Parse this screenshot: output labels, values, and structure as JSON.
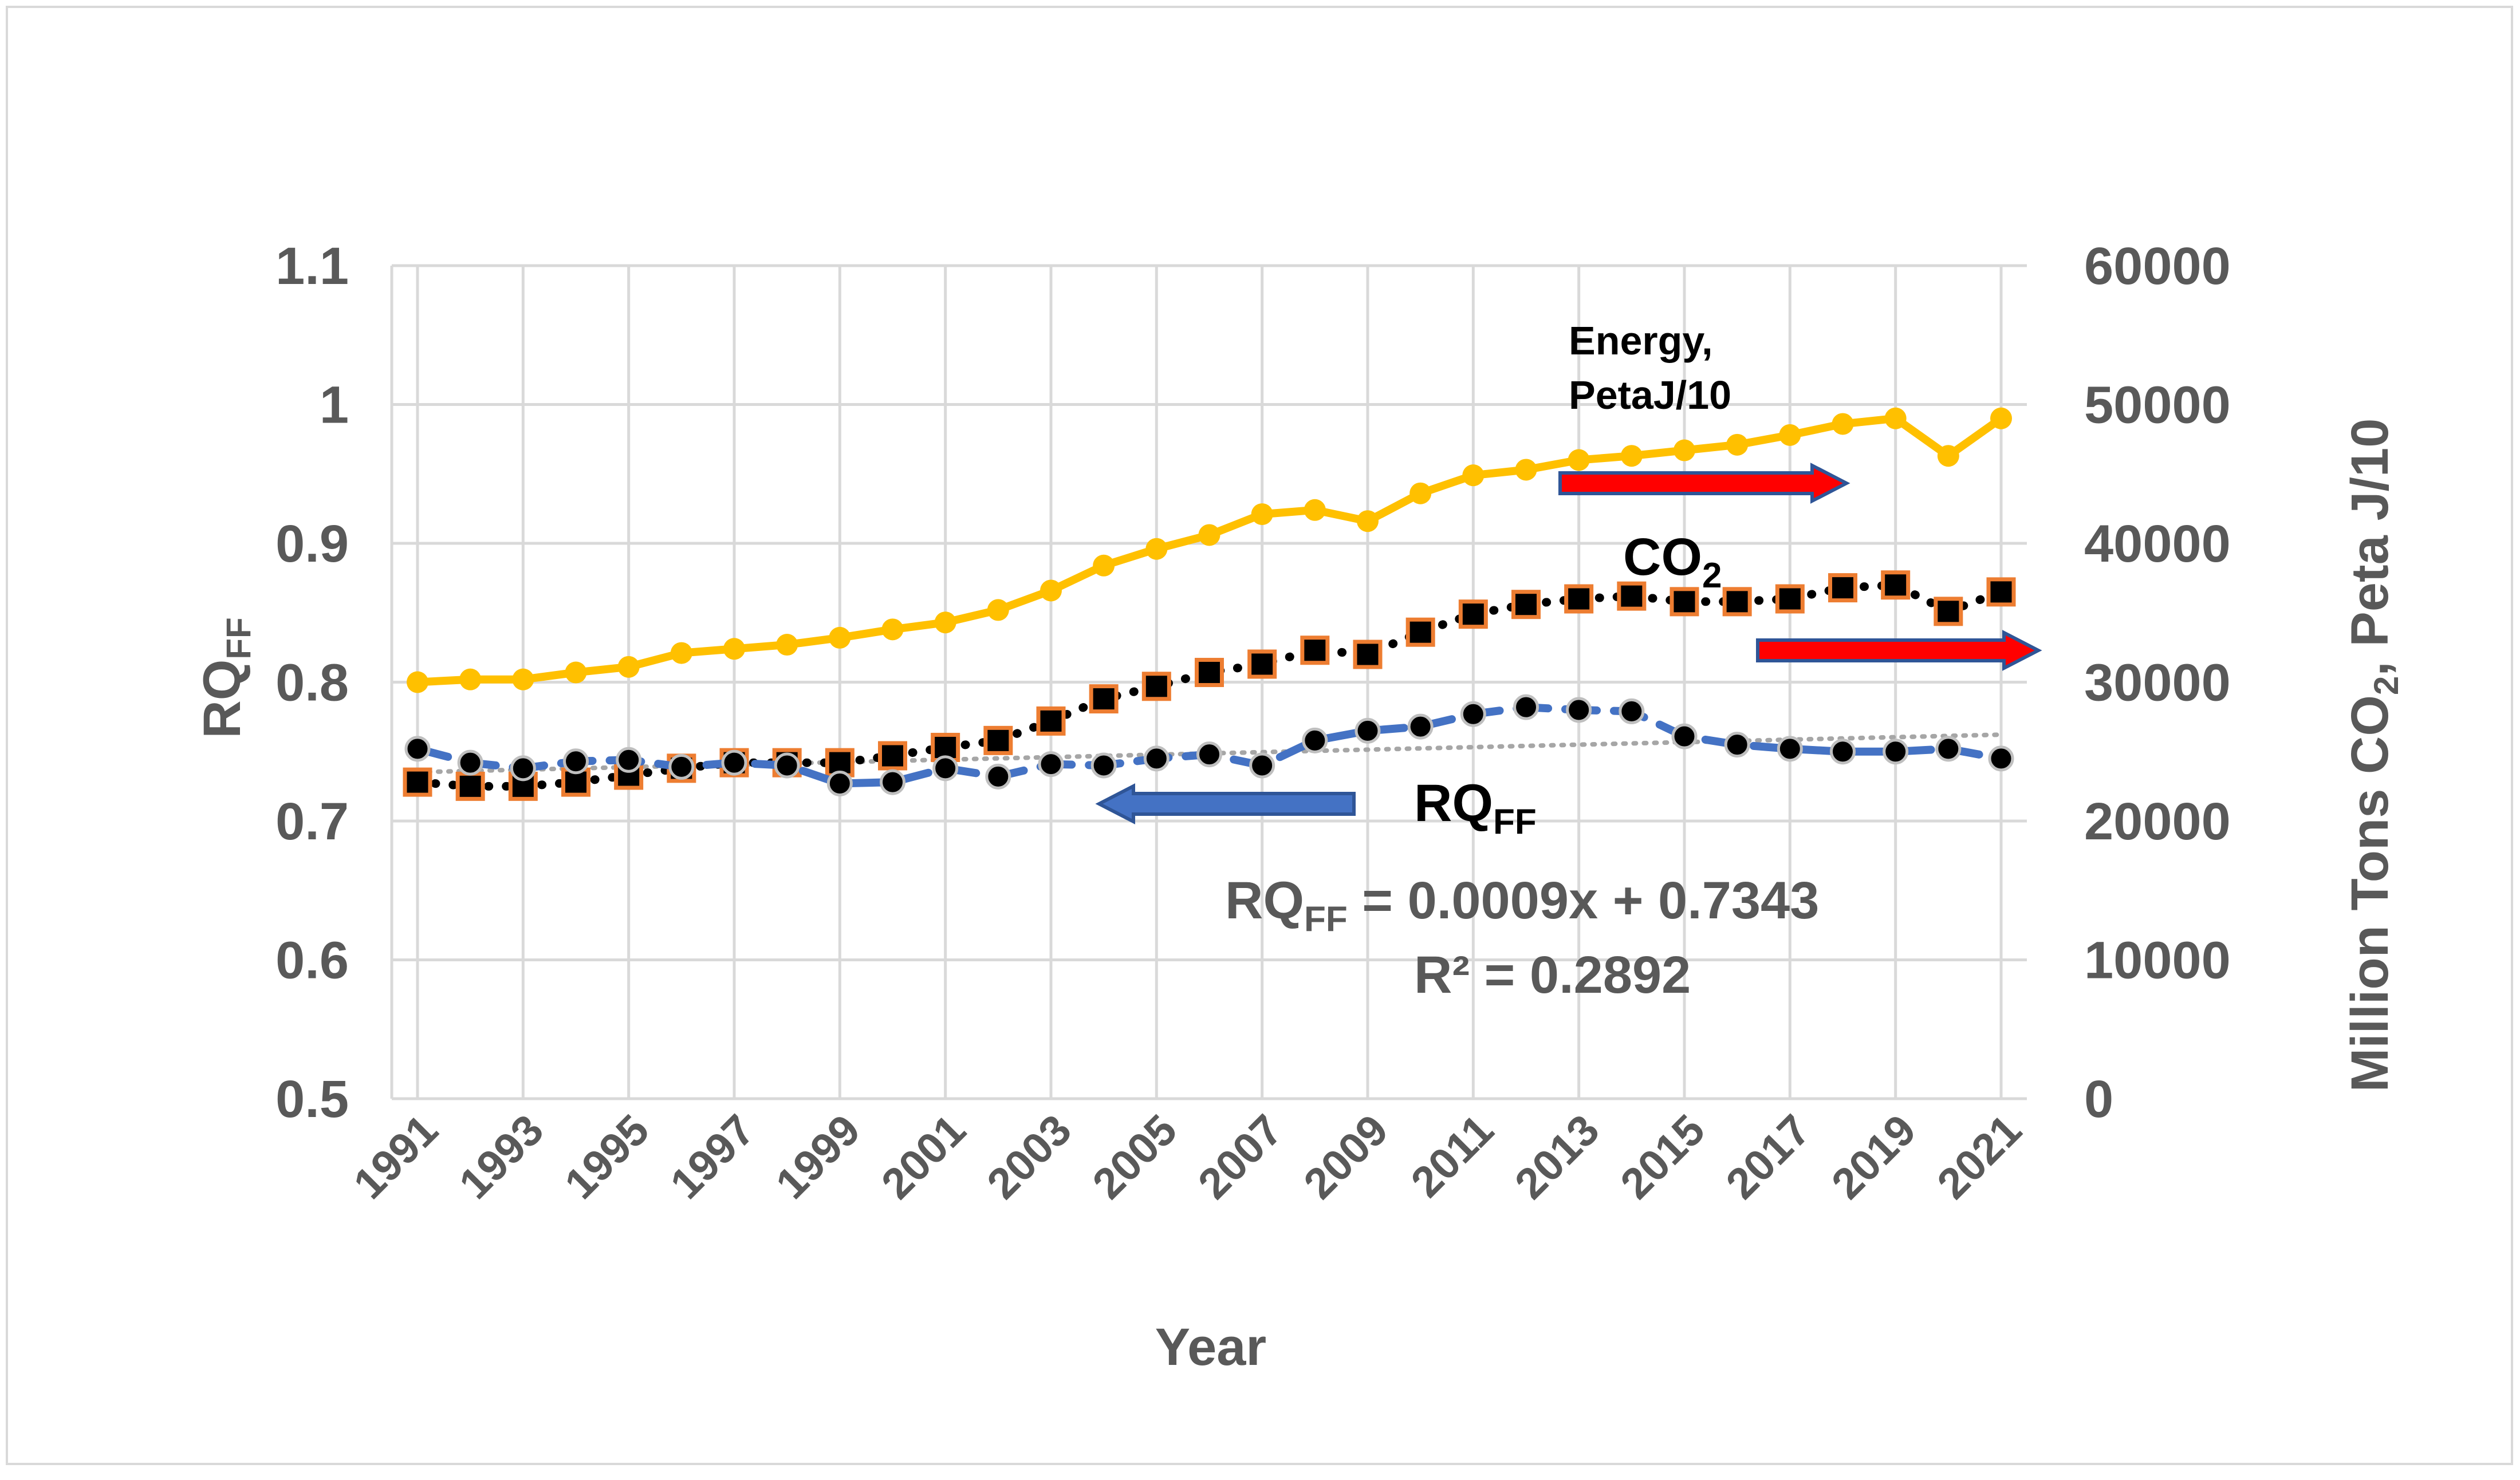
{
  "chart_data": {
    "type": "line",
    "title": "",
    "xlabel": "Year",
    "ylabel_left": "RQ",
    "ylabel_left_sub": "FF",
    "ylabel_right": "Million Tons CO",
    "ylabel_right_sub": "2",
    "ylabel_right_suffix": ", Peta  J/10",
    "x": [
      1991,
      1992,
      1993,
      1994,
      1995,
      1996,
      1997,
      1998,
      1999,
      2000,
      2001,
      2002,
      2003,
      2004,
      2005,
      2006,
      2007,
      2008,
      2009,
      2010,
      2011,
      2012,
      2013,
      2014,
      2015,
      2016,
      2017,
      2018,
      2019,
      2020,
      2021
    ],
    "x_tick_labels": [
      "1991",
      "1993",
      "1995",
      "1997",
      "1999",
      "2001",
      "2003",
      "2005",
      "2007",
      "2009",
      "2011",
      "2013",
      "2015",
      "2017",
      "2019",
      "2021"
    ],
    "ylim_left": [
      0.5,
      1.1
    ],
    "y_ticks_left": [
      "0.5",
      "0.6",
      "0.7",
      "0.8",
      "0.9",
      "1",
      "1.1"
    ],
    "ylim_right": [
      0,
      60000
    ],
    "y_ticks_right": [
      "0",
      "10000",
      "20000",
      "30000",
      "40000",
      "50000",
      "60000"
    ],
    "grid": true,
    "series": [
      {
        "name": "Energy, PetaJ/10",
        "axis": "right",
        "color": "#ffc000",
        "values": [
          30000,
          30200,
          30200,
          30700,
          31100,
          32100,
          32400,
          32700,
          33200,
          33800,
          34300,
          35200,
          36600,
          38400,
          39600,
          40600,
          42100,
          42400,
          41600,
          43600,
          44900,
          45300,
          46000,
          46300,
          46700,
          47100,
          47800,
          48600,
          49000,
          46300,
          49000
        ]
      },
      {
        "name": "CO2",
        "axis": "right",
        "color": "#000000",
        "marker_edge": "#ed7d31",
        "values": [
          22800,
          22500,
          22500,
          22800,
          23300,
          23800,
          24200,
          24200,
          24200,
          24700,
          25300,
          25800,
          27200,
          28800,
          29700,
          30700,
          31300,
          32300,
          32000,
          33600,
          34900,
          35600,
          36000,
          36200,
          35800,
          35800,
          36000,
          36800,
          37000,
          35100,
          36500
        ]
      },
      {
        "name": "RQ",
        "axis": "left",
        "color": "#4472c4",
        "values": [
          0.752,
          0.742,
          0.738,
          0.743,
          0.744,
          0.739,
          0.742,
          0.74,
          0.727,
          0.728,
          0.738,
          0.732,
          0.741,
          0.74,
          0.745,
          0.748,
          0.74,
          0.758,
          0.765,
          0.768,
          0.777,
          0.782,
          0.78,
          0.779,
          0.761,
          0.755,
          0.752,
          0.75,
          0.75,
          0.752,
          0.745
        ]
      }
    ],
    "trendline": {
      "series": "RQ",
      "equation_prefix": "RQ",
      "equation_sub": "FF",
      "equation": " = 0.0009x + 0.7343",
      "r2": "R² = 0.2892",
      "slope": 0.0009,
      "intercept": 0.7343,
      "color": "#a6a6a6"
    },
    "annotations": {
      "energy_line1": "Energy,",
      "energy_line2": "PetaJ/10",
      "co2_main": "CO",
      "co2_sub": "2",
      "rq_main": "RQ",
      "rq_sub": "FF"
    },
    "arrow_colors": {
      "red": "#ff0000",
      "blue": "#4472c4",
      "outline": "#2f5597"
    }
  }
}
